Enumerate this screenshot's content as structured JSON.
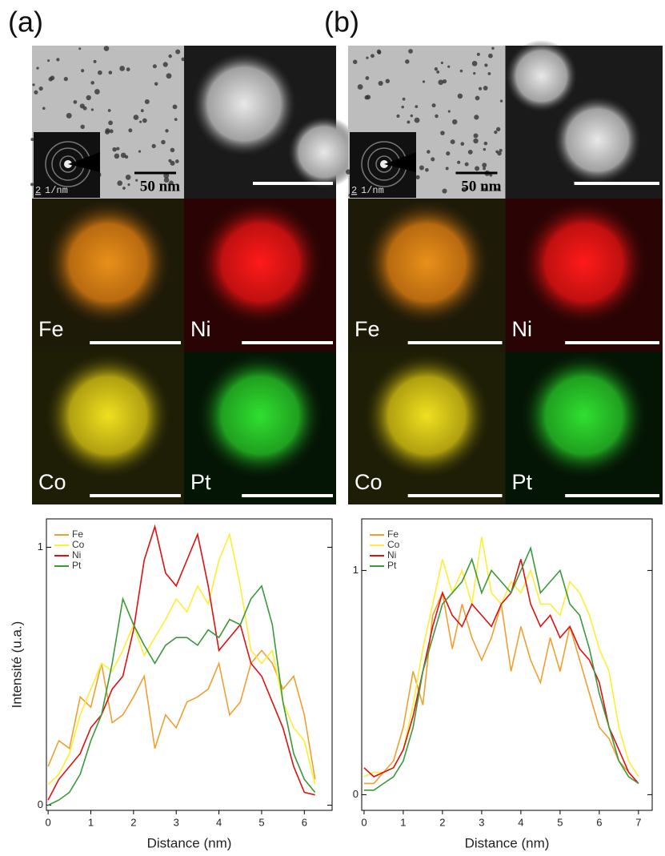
{
  "panels": [
    {
      "label": "(a)",
      "scale_label": "50 nm",
      "diffraction_scale": "2",
      "diffraction_unit": "1/nm",
      "maps": [
        "Fe",
        "Ni",
        "Co",
        "Pt"
      ]
    },
    {
      "label": "(b)",
      "scale_label": "50 nm",
      "diffraction_scale": "2",
      "diffraction_unit": "1/nm",
      "maps": [
        "Fe",
        "Ni",
        "Co",
        "Pt"
      ]
    }
  ],
  "chart_data": [
    {
      "type": "line",
      "xlabel": "Distance (nm)",
      "ylabel": "Intensité (u.a.)",
      "x": [
        0,
        0.25,
        0.5,
        0.75,
        1,
        1.25,
        1.5,
        1.75,
        2,
        2.25,
        2.5,
        2.75,
        3,
        3.25,
        3.5,
        3.75,
        4,
        4.25,
        4.5,
        4.75,
        5,
        5.25,
        5.5,
        5.75,
        6,
        6.25
      ],
      "series": [
        {
          "name": "Fe",
          "color": "#f0a030",
          "values": [
            0.15,
            0.25,
            0.22,
            0.42,
            0.38,
            0.55,
            0.32,
            0.35,
            0.42,
            0.5,
            0.22,
            0.35,
            0.3,
            0.4,
            0.42,
            0.45,
            0.55,
            0.35,
            0.4,
            0.55,
            0.6,
            0.55,
            0.45,
            0.5,
            0.35,
            0.1
          ]
        },
        {
          "name": "Co",
          "color": "#ffee33",
          "values": [
            0.08,
            0.12,
            0.2,
            0.35,
            0.45,
            0.55,
            0.52,
            0.6,
            0.7,
            0.58,
            0.65,
            0.72,
            0.8,
            0.75,
            0.85,
            0.78,
            0.95,
            1.05,
            0.85,
            0.6,
            0.55,
            0.6,
            0.4,
            0.3,
            0.25,
            0.08
          ]
        },
        {
          "name": "Ni",
          "color": "#e01010",
          "values": [
            0.02,
            0.1,
            0.15,
            0.2,
            0.3,
            0.35,
            0.45,
            0.5,
            0.68,
            0.95,
            1.08,
            0.9,
            0.85,
            0.95,
            1.05,
            0.85,
            0.6,
            0.65,
            0.7,
            0.55,
            0.5,
            0.4,
            0.3,
            0.15,
            0.05,
            0.04
          ]
        },
        {
          "name": "Pt",
          "color": "#3a9a3a",
          "values": [
            0,
            0.02,
            0.05,
            0.12,
            0.25,
            0.35,
            0.55,
            0.8,
            0.7,
            0.62,
            0.55,
            0.62,
            0.65,
            0.65,
            0.62,
            0.68,
            0.65,
            0.72,
            0.7,
            0.8,
            0.85,
            0.7,
            0.4,
            0.2,
            0.1,
            0.05
          ]
        }
      ],
      "xlim": [
        -0.04,
        6.65
      ],
      "ylim": [
        -0.02,
        1.11
      ],
      "xticks": [
        0,
        1,
        2,
        3,
        4,
        5,
        6
      ],
      "yticks": [
        0,
        1
      ]
    },
    {
      "type": "line",
      "xlabel": "Distance (nm)",
      "x": [
        0,
        0.25,
        0.5,
        0.75,
        1,
        1.25,
        1.5,
        1.75,
        2,
        2.25,
        2.5,
        2.75,
        3,
        3.25,
        3.5,
        3.75,
        4,
        4.25,
        4.5,
        4.75,
        5,
        5.25,
        5.5,
        5.75,
        6,
        6.25,
        6.5,
        6.75,
        7
      ],
      "series": [
        {
          "name": "Fe",
          "color": "#f0a030",
          "values": [
            0.05,
            0.05,
            0.1,
            0.15,
            0.3,
            0.55,
            0.4,
            0.8,
            0.9,
            0.65,
            0.85,
            0.7,
            0.6,
            0.7,
            0.85,
            0.55,
            0.75,
            0.6,
            0.5,
            0.7,
            0.55,
            0.75,
            0.6,
            0.45,
            0.3,
            0.25,
            0.15,
            0.1,
            0.05
          ]
        },
        {
          "name": "Co",
          "color": "#ffee33",
          "values": [
            0.08,
            0.1,
            0.1,
            0.12,
            0.2,
            0.4,
            0.65,
            0.85,
            1.05,
            0.9,
            1.0,
            0.85,
            1.15,
            0.9,
            0.85,
            0.95,
            0.9,
            1.0,
            0.85,
            0.85,
            0.8,
            0.95,
            0.9,
            0.8,
            0.65,
            0.55,
            0.3,
            0.15,
            0.08
          ]
        },
        {
          "name": "Ni",
          "color": "#e01010",
          "values": [
            0.12,
            0.08,
            0.1,
            0.12,
            0.2,
            0.35,
            0.55,
            0.75,
            0.9,
            0.8,
            0.75,
            0.85,
            0.8,
            0.75,
            0.85,
            0.9,
            1.05,
            0.85,
            0.75,
            0.8,
            0.7,
            0.75,
            0.65,
            0.6,
            0.5,
            0.3,
            0.2,
            0.1,
            0.05
          ]
        },
        {
          "name": "Pt",
          "color": "#3a9a3a",
          "values": [
            0.02,
            0.02,
            0.05,
            0.08,
            0.15,
            0.3,
            0.55,
            0.7,
            0.85,
            0.9,
            0.95,
            1.05,
            0.9,
            1.0,
            0.95,
            0.9,
            1.0,
            1.1,
            0.9,
            0.95,
            1.0,
            0.85,
            0.8,
            0.65,
            0.45,
            0.3,
            0.15,
            0.08,
            0.05
          ]
        }
      ],
      "xlim": [
        -0.06,
        7.35
      ],
      "ylim": [
        -0.07,
        1.23
      ],
      "xticks": [
        0,
        1,
        2,
        3,
        4,
        5,
        6,
        7
      ],
      "yticks": [
        0,
        1
      ]
    }
  ]
}
